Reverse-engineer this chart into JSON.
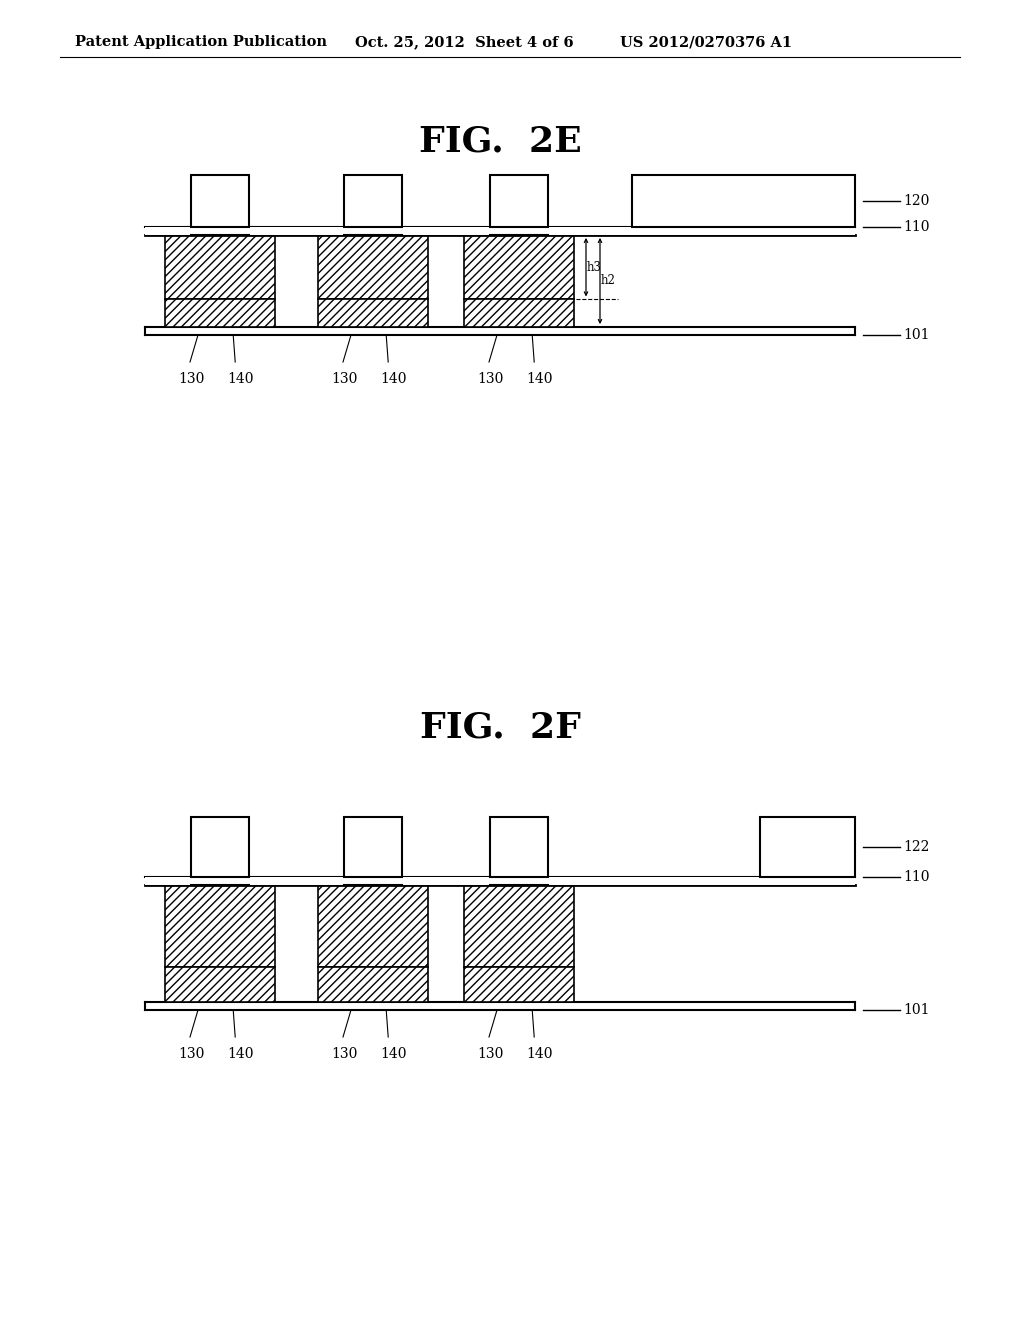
{
  "bg_color": "#ffffff",
  "line_color": "#000000",
  "fig_title_2e": "FIG.  2E",
  "fig_title_2f": "FIG.  2F",
  "header_left": "Patent Application Publication",
  "header_mid": "Oct. 25, 2012  Sheet 4 of 6",
  "header_right": "US 2012/0270376 A1",
  "label_101": "101",
  "label_110": "110",
  "label_120": "120",
  "label_122": "122",
  "label_130": "130",
  "label_140": "140",
  "label_h2": "h2",
  "label_h3": "h3",
  "lw": 1.5
}
